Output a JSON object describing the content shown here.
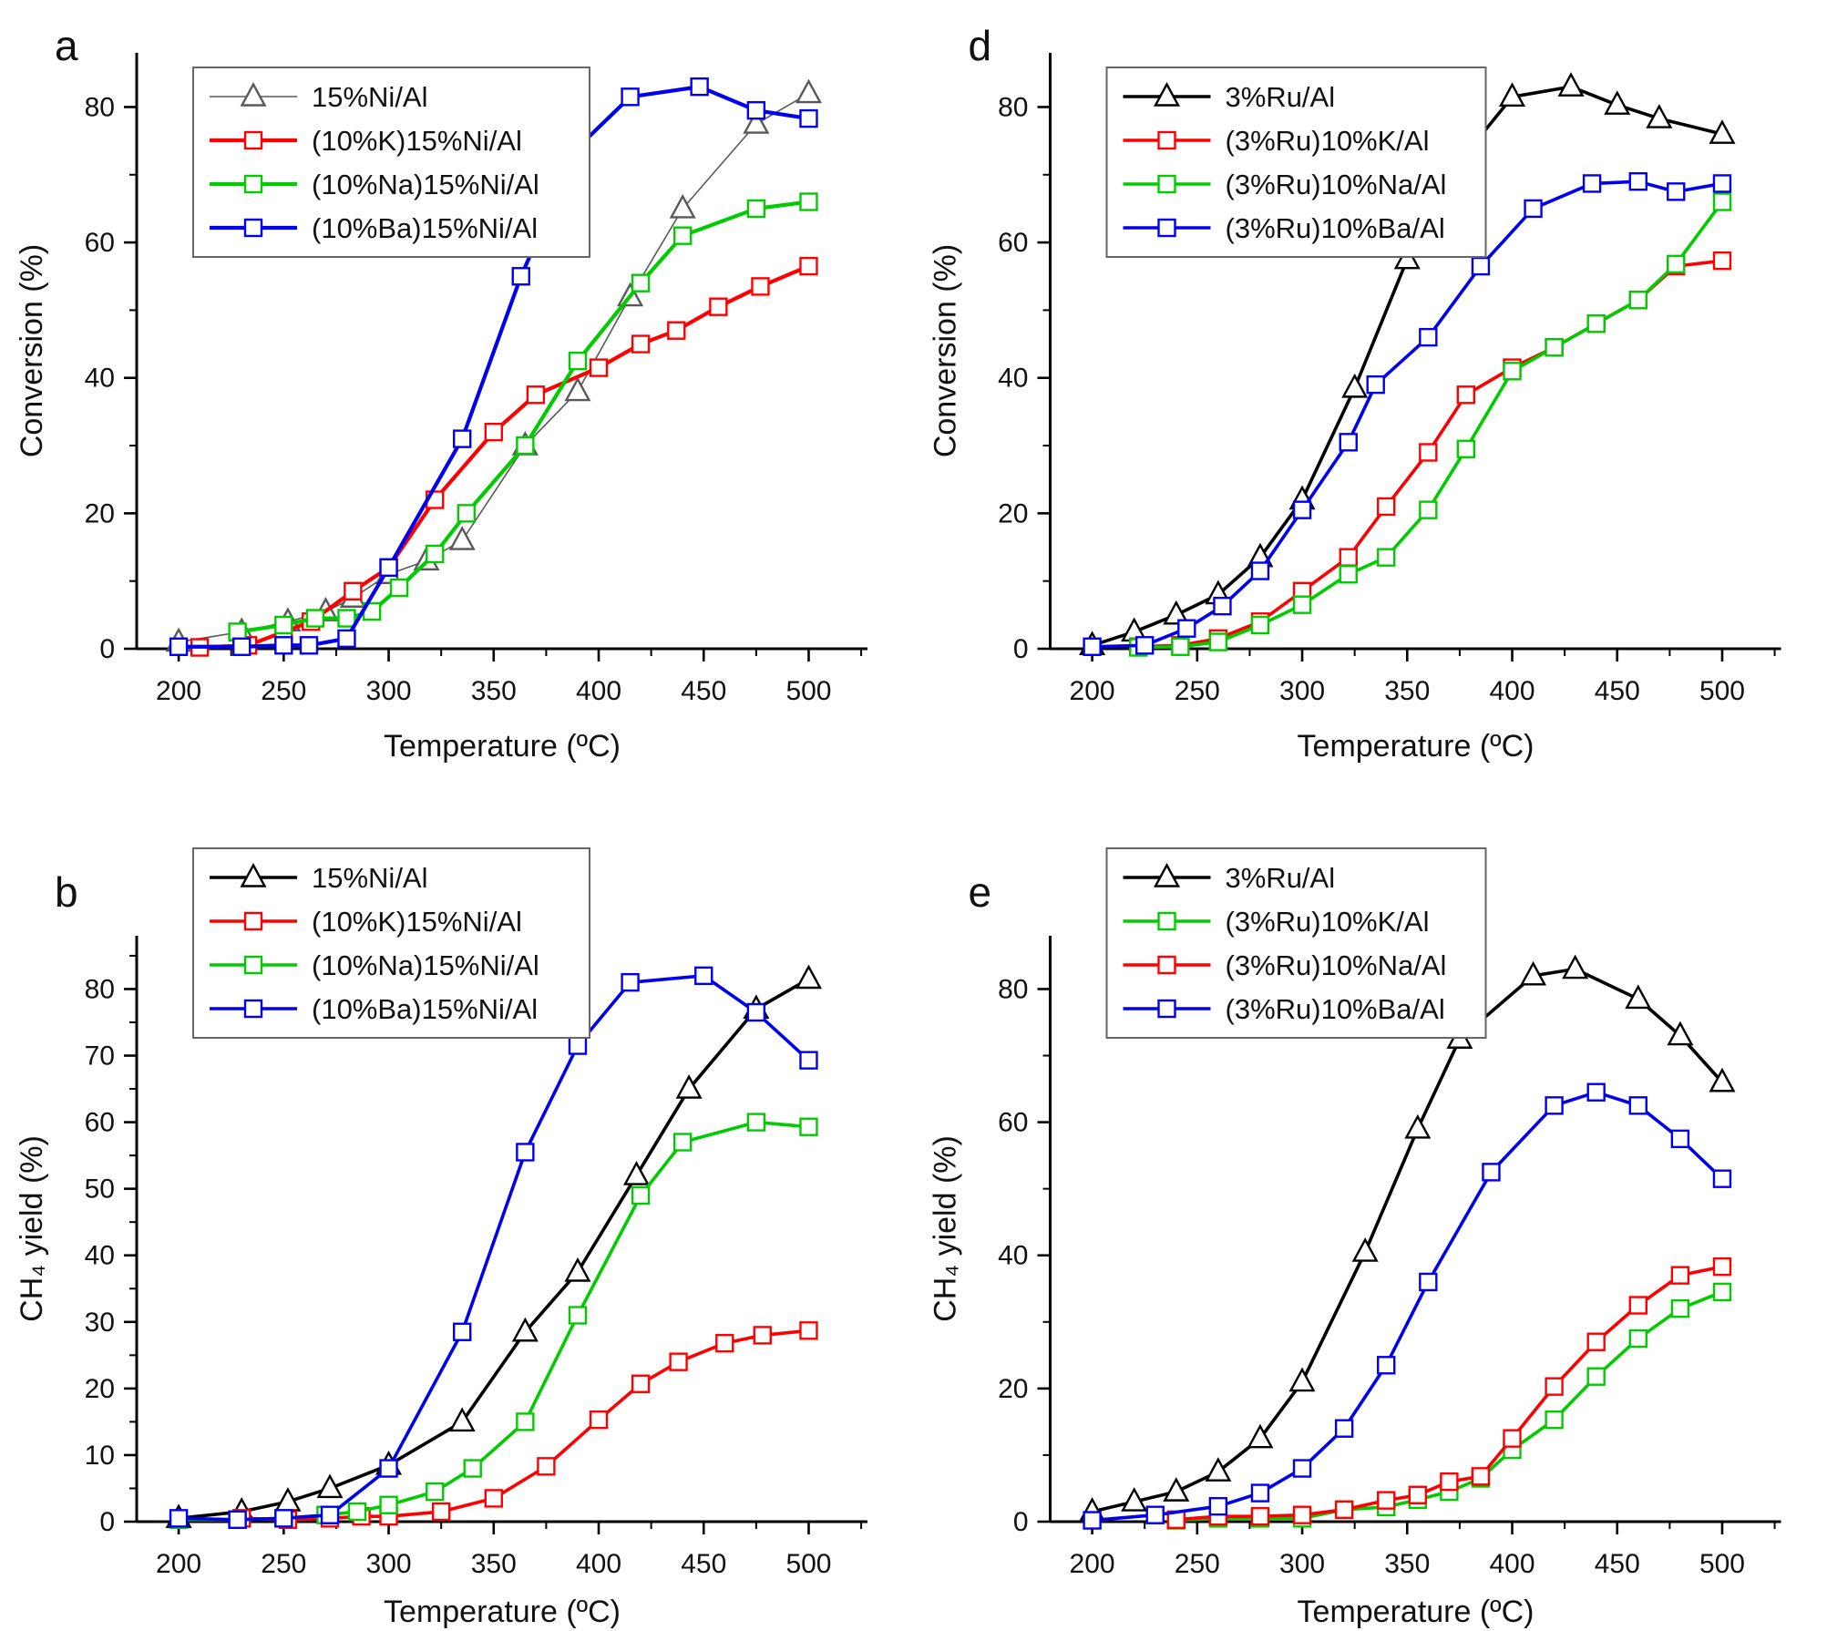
{
  "figure": {
    "background": "#ffffff",
    "panel_letters": [
      "a",
      "d",
      "b",
      "e"
    ]
  },
  "colors": {
    "black": "#000000",
    "gray": "#595959",
    "red": "#ff0000",
    "green": "#00cc00",
    "blue": "#0000ee",
    "legend_border": "#666666",
    "axis": "#000000"
  },
  "chart_data": [
    {
      "id": "a",
      "type": "line",
      "letter": "a",
      "xlabel": "Temperature (ºC)",
      "ylabel": "Conversion (%)",
      "xlim": [
        180,
        528
      ],
      "ylim": [
        0,
        88
      ],
      "xticks": [
        200,
        250,
        300,
        350,
        400,
        450,
        500
      ],
      "yticks": [
        0,
        20,
        40,
        60,
        80
      ],
      "x_minor_step": 25,
      "y_minor_step": 10,
      "grid": false,
      "legend_position": "top-left",
      "series": [
        {
          "name": "15%Ni/Al",
          "color_key": "gray",
          "marker": "triangle",
          "line_width": 1.6,
          "x": [
            200,
            230,
            252,
            270,
            283,
            300,
            318,
            335,
            365,
            390,
            415,
            440,
            475,
            500
          ],
          "y": [
            1,
            2.5,
            4,
            5.5,
            7.5,
            11,
            13,
            16,
            30,
            38,
            52,
            65,
            77.5,
            82
          ]
        },
        {
          "name": "(10%K)15%Ni/Al",
          "color_key": "red",
          "marker": "square",
          "line_width": 4.2,
          "x": [
            210,
            233,
            250,
            263,
            283,
            300,
            322,
            350,
            370,
            400,
            420,
            437,
            457,
            477,
            500
          ],
          "y": [
            0.2,
            0.5,
            2.5,
            4,
            8.5,
            12,
            22,
            32,
            37.5,
            41.5,
            45,
            47,
            50.5,
            53.5,
            56.5
          ]
        },
        {
          "name": "(10%Na)15%Ni/Al",
          "color_key": "green",
          "marker": "square",
          "line_width": 4.2,
          "x": [
            228,
            250,
            265,
            280,
            292,
            305,
            322,
            337,
            365,
            390,
            420,
            440,
            475,
            500
          ],
          "y": [
            2.5,
            3.5,
            4.5,
            4.5,
            5.5,
            9,
            14,
            20,
            30,
            42.5,
            54,
            61,
            65,
            66
          ]
        },
        {
          "name": "(10%Ba)15%Ni/Al",
          "color_key": "blue",
          "marker": "square",
          "line_width": 4.2,
          "x": [
            200,
            230,
            250,
            262,
            280,
            300,
            335,
            363,
            390,
            415,
            448,
            475,
            500
          ],
          "y": [
            0.3,
            0.3,
            0.5,
            0.5,
            1.5,
            12,
            31,
            55,
            74,
            81.5,
            83,
            79.5,
            78.3
          ]
        }
      ]
    },
    {
      "id": "d",
      "type": "line",
      "letter": "d",
      "xlabel": "Temperature (ºC)",
      "ylabel": "Conversion (%)",
      "xlim": [
        180,
        528
      ],
      "ylim": [
        0,
        88
      ],
      "xticks": [
        200,
        250,
        300,
        350,
        400,
        450,
        500
      ],
      "yticks": [
        0,
        20,
        40,
        60,
        80
      ],
      "x_minor_step": 25,
      "y_minor_step": 10,
      "grid": false,
      "legend_position": "top-left",
      "series": [
        {
          "name": "3%Ru/Al",
          "color_key": "black",
          "marker": "triangle",
          "line_width": 3.6,
          "x": [
            200,
            220,
            240,
            260,
            280,
            300,
            325,
            350,
            370,
            400,
            428,
            450,
            470,
            500
          ],
          "y": [
            0.5,
            2.5,
            5,
            8,
            13.5,
            22,
            38.5,
            57.5,
            70,
            81.5,
            83,
            80.3,
            78.3,
            76
          ]
        },
        {
          "name": "(3%Ru)10%K/Al",
          "color_key": "red",
          "marker": "square",
          "line_width": 3.6,
          "x": [
            222,
            242,
            260,
            280,
            300,
            322,
            340,
            360,
            378,
            400,
            420,
            440,
            460,
            478,
            500
          ],
          "y": [
            0.3,
            0.5,
            1.5,
            4,
            8.5,
            13.5,
            21,
            29,
            37.5,
            41.5,
            44.5,
            48,
            51.5,
            56.5,
            57.3
          ]
        },
        {
          "name": "(3%Ru)10%Na/Al",
          "color_key": "green",
          "marker": "square",
          "line_width": 3.6,
          "x": [
            222,
            242,
            260,
            280,
            300,
            322,
            340,
            360,
            378,
            400,
            420,
            440,
            460,
            478,
            500
          ],
          "y": [
            0.2,
            0.3,
            1,
            3.5,
            6.5,
            11,
            13.5,
            20.5,
            29.5,
            41,
            44.5,
            48,
            51.5,
            56.8,
            66
          ]
        },
        {
          "name": "(3%Ru)10%Ba/Al",
          "color_key": "blue",
          "marker": "square",
          "line_width": 3.6,
          "x": [
            200,
            225,
            245,
            262,
            280,
            300,
            322,
            335,
            360,
            385,
            410,
            438,
            460,
            478,
            500
          ],
          "y": [
            0.3,
            0.5,
            3,
            6.3,
            11.5,
            20.5,
            30.5,
            39,
            46,
            56.5,
            65,
            68.7,
            69,
            67.5,
            68.7
          ]
        }
      ]
    },
    {
      "id": "b",
      "type": "line",
      "letter": "b",
      "xlabel": "Temperature (ºC)",
      "ylabel": "CH₄ yield (%)",
      "xlim": [
        180,
        528
      ],
      "ylim": [
        0,
        88
      ],
      "xticks": [
        200,
        250,
        300,
        350,
        400,
        450,
        500
      ],
      "yticks": [
        0,
        10,
        20,
        30,
        40,
        50,
        60,
        70,
        80
      ],
      "x_minor_step": 25,
      "y_minor_step": 5,
      "grid": false,
      "legend_position": "top-left",
      "series": [
        {
          "name": "15%Ni/Al",
          "color_key": "black",
          "marker": "triangle",
          "line_width": 3.6,
          "x": [
            200,
            230,
            252,
            272,
            300,
            335,
            365,
            390,
            418,
            443,
            475,
            500
          ],
          "y": [
            0.5,
            1.5,
            3,
            5,
            8.5,
            15,
            28.5,
            37.5,
            52,
            65,
            77,
            81.5
          ]
        },
        {
          "name": "(10%K)15%Ni/Al",
          "color_key": "red",
          "marker": "square",
          "line_width": 3.6,
          "x": [
            230,
            252,
            272,
            287,
            300,
            325,
            350,
            375,
            400,
            420,
            438,
            460,
            478,
            500
          ],
          "y": [
            0.5,
            0.3,
            0.5,
            0.8,
            0.8,
            1.5,
            3.5,
            8.3,
            15.3,
            20.7,
            24,
            26.8,
            28,
            28.7
          ]
        },
        {
          "name": "(10%Na)15%Ni/Al",
          "color_key": "green",
          "marker": "square",
          "line_width": 3.6,
          "x": [
            200,
            228,
            250,
            270,
            285,
            300,
            322,
            340,
            365,
            390,
            420,
            440,
            475,
            500
          ],
          "y": [
            0.3,
            0.3,
            0.5,
            1,
            1.5,
            2.5,
            4.5,
            8,
            15,
            31,
            49,
            57,
            60,
            59.3
          ]
        },
        {
          "name": "(10%Ba)15%Ni/Al",
          "color_key": "blue",
          "marker": "square",
          "line_width": 3.6,
          "x": [
            200,
            228,
            250,
            272,
            300,
            335,
            365,
            390,
            415,
            450,
            475,
            500
          ],
          "y": [
            0.5,
            0.3,
            0.5,
            1,
            8,
            28.5,
            55.5,
            71.5,
            81,
            82,
            76.5,
            69.3
          ]
        }
      ]
    },
    {
      "id": "e",
      "type": "line",
      "letter": "e",
      "xlabel": "Temperature (ºC)",
      "ylabel": "CH₄ yield (%)",
      "xlim": [
        180,
        528
      ],
      "ylim": [
        0,
        88
      ],
      "xticks": [
        200,
        250,
        300,
        350,
        400,
        450,
        500
      ],
      "yticks": [
        0,
        20,
        40,
        60,
        80
      ],
      "x_minor_step": 25,
      "y_minor_step": 10,
      "grid": false,
      "legend_position": "top-left",
      "series": [
        {
          "name": "3%Ru/Al",
          "color_key": "black",
          "marker": "triangle",
          "line_width": 3.6,
          "x": [
            200,
            220,
            240,
            260,
            280,
            300,
            330,
            355,
            375,
            410,
            430,
            460,
            480,
            500
          ],
          "y": [
            1.5,
            3,
            4.5,
            7.5,
            12.5,
            21,
            40.5,
            59,
            72.5,
            82,
            83,
            78.5,
            73,
            66
          ]
        },
        {
          "name": "(3%Ru)10%K/Al",
          "color_key": "green",
          "marker": "square",
          "line_width": 3.6,
          "x": [
            240,
            260,
            280,
            300,
            320,
            340,
            355,
            370,
            385,
            400,
            420,
            440,
            460,
            480,
            500
          ],
          "y": [
            0.2,
            0.5,
            0.5,
            0.5,
            1.8,
            2.2,
            3.3,
            4.5,
            6.5,
            10.8,
            15.3,
            21.8,
            27.5,
            32,
            34.5
          ]
        },
        {
          "name": "(3%Ru)10%Na/Al",
          "color_key": "red",
          "marker": "square",
          "line_width": 3.6,
          "x": [
            240,
            260,
            280,
            300,
            320,
            340,
            355,
            370,
            385,
            400,
            420,
            440,
            460,
            480,
            500
          ],
          "y": [
            0.3,
            0.8,
            0.8,
            1,
            1.8,
            3.2,
            4,
            6,
            6.8,
            12.5,
            20.3,
            27,
            32.5,
            37,
            38.3
          ]
        },
        {
          "name": "(3%Ru)10%Ba/Al",
          "color_key": "blue",
          "marker": "square",
          "line_width": 3.6,
          "x": [
            200,
            230,
            260,
            280,
            300,
            320,
            340,
            360,
            390,
            420,
            440,
            460,
            480,
            500
          ],
          "y": [
            0.2,
            1,
            2.3,
            4.3,
            8,
            14,
            23.5,
            36,
            52.5,
            62.5,
            64.5,
            62.5,
            57.5,
            51.5
          ]
        }
      ]
    }
  ]
}
